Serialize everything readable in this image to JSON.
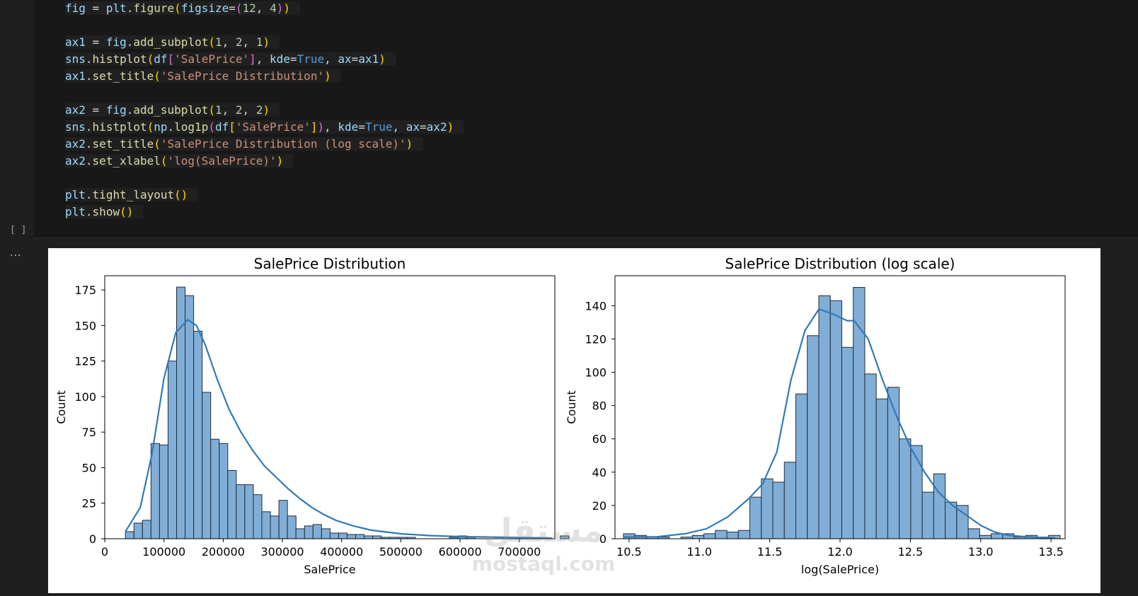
{
  "code_lines": [
    "fig = plt.figure(figsize=(12, 4))",
    "",
    "ax1 = fig.add_subplot(1, 2, 1)",
    "sns.histplot(df['SalePrice'], kde=True, ax=ax1)",
    "ax1.set_title('SalePrice Distribution')",
    "",
    "ax2 = fig.add_subplot(1, 2, 2)",
    "sns.histplot(np.log1p(df['SalePrice']), kde=True, ax=ax2)",
    "ax2.set_title('SalePrice Distribution (log scale)')",
    "ax2.set_xlabel('log(SalePrice)')",
    "",
    "plt.tight_layout()",
    "plt.show()"
  ],
  "exec_marker": "[ ]",
  "output_ellipsis": "...",
  "watermark": {
    "arabic": "مستقل",
    "latin": "mostaql.com"
  },
  "colors": {
    "bar_fill": "#81aed6",
    "bar_edge": "#1f2d3a",
    "kde": "#2f7ab8"
  },
  "chart_data": [
    {
      "type": "bar",
      "title": "SalePrice Distribution",
      "xlabel": "SalePrice",
      "ylabel": "Count",
      "xlim": [
        0,
        760000
      ],
      "ylim": [
        0,
        185
      ],
      "xticks": [
        0,
        100000,
        200000,
        300000,
        400000,
        500000,
        600000,
        700000
      ],
      "xtick_labels": [
        "0",
        "100000",
        "200000",
        "300000",
        "400000",
        "500000",
        "600000",
        "700000"
      ],
      "yticks": [
        0,
        25,
        50,
        75,
        100,
        125,
        150,
        175
      ],
      "bin_start": 34900,
      "bin_width": 14400,
      "values": [
        5,
        11,
        13,
        67,
        66,
        125,
        177,
        171,
        146,
        103,
        70,
        67,
        48,
        38,
        38,
        31,
        19,
        16,
        27,
        16,
        7,
        9,
        10,
        7,
        4,
        4,
        3,
        3,
        2,
        2,
        1,
        1,
        1,
        1,
        0,
        0,
        0,
        0,
        1,
        2,
        1,
        0,
        0,
        0,
        0,
        0,
        0,
        0,
        0,
        0,
        0,
        2
      ],
      "kde": [
        [
          34900,
          5
        ],
        [
          60000,
          22
        ],
        [
          80000,
          60
        ],
        [
          100000,
          113
        ],
        [
          120000,
          145
        ],
        [
          140000,
          154
        ],
        [
          155000,
          150
        ],
        [
          170000,
          136
        ],
        [
          190000,
          112
        ],
        [
          210000,
          91
        ],
        [
          230000,
          75
        ],
        [
          250000,
          62
        ],
        [
          270000,
          51
        ],
        [
          290000,
          43
        ],
        [
          310000,
          35
        ],
        [
          330000,
          28
        ],
        [
          350000,
          22
        ],
        [
          370000,
          17
        ],
        [
          390000,
          13
        ],
        [
          420000,
          9
        ],
        [
          450000,
          6
        ],
        [
          500000,
          3.5
        ],
        [
          550000,
          2.2
        ],
        [
          600000,
          1.5
        ],
        [
          650000,
          1.2
        ],
        [
          700000,
          0.8
        ],
        [
          755000,
          0.5
        ]
      ]
    },
    {
      "type": "bar",
      "title": "SalePrice Distribution (log scale)",
      "xlabel": "log(SalePrice)",
      "ylabel": "Count",
      "xlim": [
        10.4,
        13.6
      ],
      "ylim": [
        0,
        158
      ],
      "xticks": [
        10.5,
        11.0,
        11.5,
        12.0,
        12.5,
        13.0,
        13.5
      ],
      "xtick_labels": [
        "10.5",
        "11.0",
        "11.5",
        "12.0",
        "12.5",
        "13.0",
        "13.5"
      ],
      "yticks": [
        0,
        20,
        40,
        60,
        80,
        100,
        120,
        140
      ],
      "bin_start": 10.46,
      "bin_width": 0.0817,
      "values": [
        3,
        2,
        1,
        1,
        0,
        1,
        2,
        3,
        5,
        4,
        5,
        25,
        36,
        34,
        46,
        87,
        122,
        146,
        143,
        115,
        151,
        99,
        84,
        91,
        60,
        56,
        28,
        39,
        22,
        20,
        6,
        2,
        3,
        3,
        1,
        2,
        1,
        2
      ],
      "kde": [
        [
          10.46,
          1
        ],
        [
          10.7,
          1.2
        ],
        [
          10.9,
          3
        ],
        [
          11.05,
          6
        ],
        [
          11.2,
          13
        ],
        [
          11.35,
          24
        ],
        [
          11.45,
          33
        ],
        [
          11.55,
          52
        ],
        [
          11.65,
          95
        ],
        [
          11.75,
          125
        ],
        [
          11.85,
          138
        ],
        [
          11.95,
          135
        ],
        [
          12.05,
          131
        ],
        [
          12.1,
          131
        ],
        [
          12.2,
          120
        ],
        [
          12.3,
          96
        ],
        [
          12.4,
          74
        ],
        [
          12.5,
          55
        ],
        [
          12.6,
          40
        ],
        [
          12.7,
          28
        ],
        [
          12.8,
          20
        ],
        [
          12.9,
          14
        ],
        [
          13.0,
          8
        ],
        [
          13.1,
          4
        ],
        [
          13.2,
          2
        ],
        [
          13.35,
          1
        ],
        [
          13.53,
          0.5
        ]
      ]
    }
  ]
}
